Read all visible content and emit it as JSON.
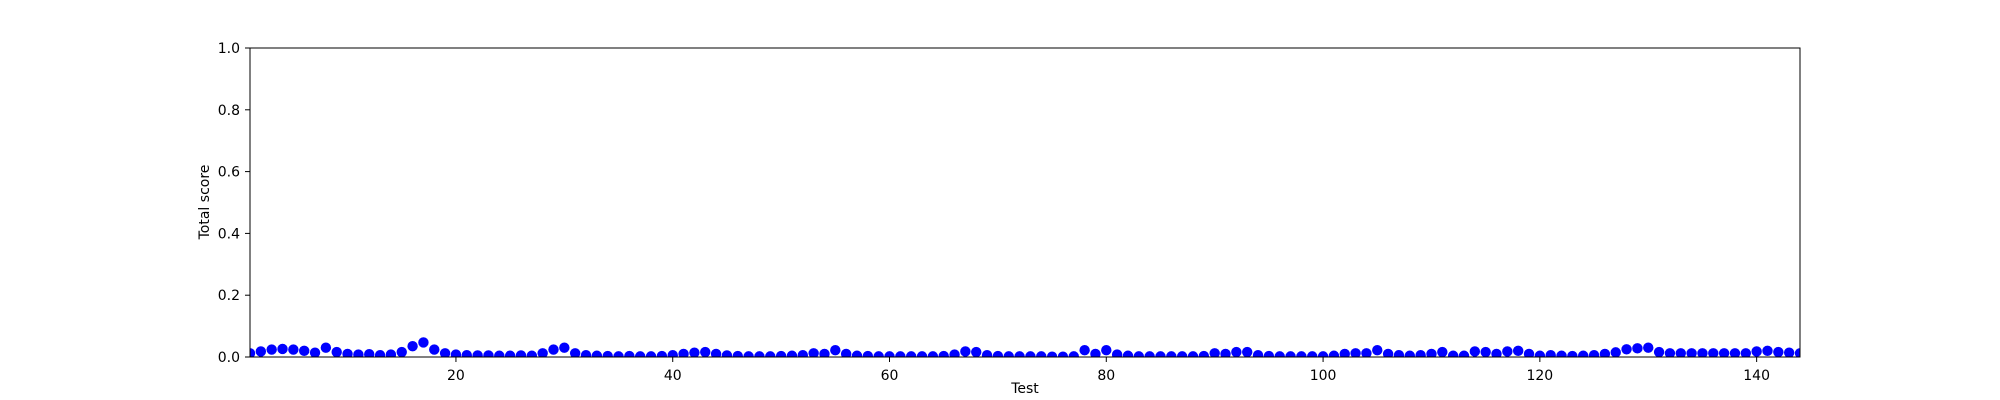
{
  "chart_data": {
    "type": "scatter",
    "title": "",
    "xlabel": "Test",
    "ylabel": "Total score",
    "xlim": [
      1,
      144
    ],
    "ylim": [
      0.0,
      1.0
    ],
    "grid": false,
    "marker_color": "#0000ff",
    "x_ticks": [
      20,
      40,
      60,
      80,
      100,
      120,
      140
    ],
    "x_tick_labels": [
      "20",
      "40",
      "60",
      "80",
      "100",
      "120",
      "140"
    ],
    "y_ticks": [
      0.0,
      0.2,
      0.4,
      0.6,
      0.8,
      1.0
    ],
    "y_tick_labels": [
      "0.0",
      "0.2",
      "0.4",
      "0.6",
      "0.8",
      "1.0"
    ],
    "x_start": 1,
    "y": [
      0.012,
      0.018,
      0.024,
      0.026,
      0.024,
      0.02,
      0.014,
      0.03,
      0.016,
      0.01,
      0.008,
      0.009,
      0.006,
      0.008,
      0.016,
      0.035,
      0.047,
      0.024,
      0.012,
      0.008,
      0.006,
      0.005,
      0.005,
      0.004,
      0.004,
      0.005,
      0.004,
      0.012,
      0.024,
      0.03,
      0.012,
      0.006,
      0.004,
      0.003,
      0.002,
      0.003,
      0.002,
      0.002,
      0.003,
      0.006,
      0.01,
      0.014,
      0.016,
      0.01,
      0.005,
      0.003,
      0.002,
      0.002,
      0.002,
      0.003,
      0.004,
      0.006,
      0.012,
      0.01,
      0.022,
      0.01,
      0.004,
      0.003,
      0.002,
      0.002,
      0.002,
      0.002,
      0.002,
      0.002,
      0.003,
      0.008,
      0.018,
      0.016,
      0.006,
      0.003,
      0.002,
      0.002,
      0.002,
      0.002,
      0.001,
      0.001,
      0.002,
      0.022,
      0.01,
      0.022,
      0.008,
      0.004,
      0.002,
      0.002,
      0.002,
      0.002,
      0.002,
      0.002,
      0.003,
      0.012,
      0.01,
      0.016,
      0.016,
      0.006,
      0.003,
      0.002,
      0.002,
      0.002,
      0.002,
      0.002,
      0.004,
      0.01,
      0.012,
      0.012,
      0.022,
      0.01,
      0.006,
      0.004,
      0.006,
      0.01,
      0.016,
      0.004,
      0.004,
      0.018,
      0.016,
      0.01,
      0.018,
      0.02,
      0.01,
      0.004,
      0.006,
      0.004,
      0.003,
      0.004,
      0.006,
      0.01,
      0.015,
      0.025,
      0.028,
      0.03,
      0.016,
      0.012,
      0.012,
      0.012,
      0.012,
      0.012,
      0.012,
      0.012,
      0.012,
      0.018,
      0.02,
      0.016,
      0.014,
      0.012
    ]
  }
}
